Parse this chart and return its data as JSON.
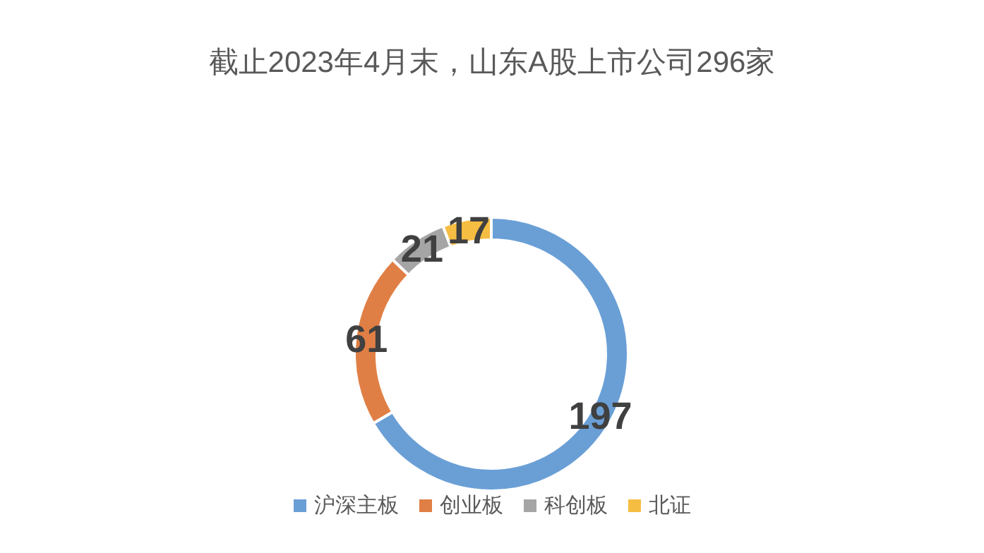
{
  "chart_data": {
    "type": "donut",
    "title": "截止2023年4月末，山东A股上市公司296家",
    "categories": [
      "沪深主板",
      "创业板",
      "科创板",
      "北证"
    ],
    "values": [
      197,
      61,
      21,
      17
    ],
    "colors": [
      "#6a9fd6",
      "#e07f45",
      "#a5a5a5",
      "#f5bd42"
    ],
    "data_labels": true,
    "legend": "bottom"
  }
}
